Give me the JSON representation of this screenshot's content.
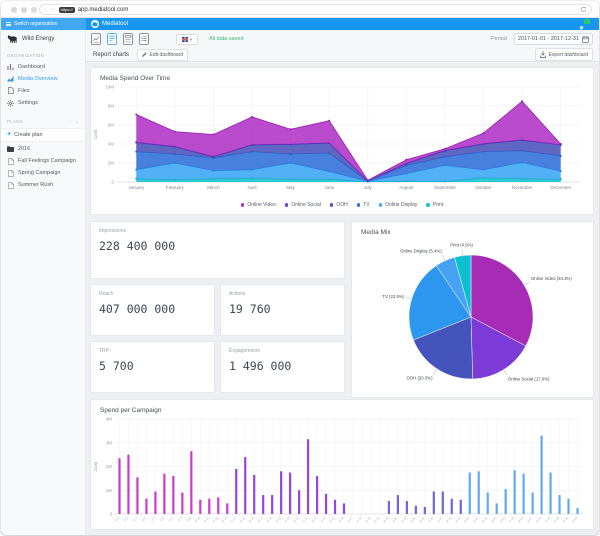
{
  "browser": {
    "protocol_label": "https://",
    "url": "app.mediatool.com"
  },
  "header": {
    "switch_org": "Switch organization",
    "brand": "Mediatool"
  },
  "sidebar": {
    "org_name": "Wild Energy",
    "section_org": "ORGANIZATION",
    "org_items": [
      {
        "label": "Dashboard",
        "icon": "dashboard-icon",
        "active": false
      },
      {
        "label": "Media Overview",
        "icon": "media-overview-icon",
        "active": true
      },
      {
        "label": "Files",
        "icon": "files-icon",
        "active": false
      },
      {
        "label": "Settings",
        "icon": "settings-icon",
        "active": false
      }
    ],
    "section_plans": "PLANS",
    "create_plan": "Create plan",
    "plans": [
      {
        "label": "2016",
        "icon": "folder-icon"
      },
      {
        "label": "Fall Feelings Campaign",
        "icon": "document-icon"
      },
      {
        "label": "Spring Campaign",
        "icon": "document-icon"
      },
      {
        "label": "Summer Rush",
        "icon": "document-icon"
      }
    ]
  },
  "toolbar": {
    "saved": "All data saved",
    "period_label": "Period",
    "period_value": "2017-01-01 - 2017-12-31",
    "tab": "Report charts",
    "edit": "Edit dashboard",
    "export": "Export dashboard"
  },
  "kpis": [
    {
      "label": "Impressions",
      "value": "228 400 000"
    },
    {
      "label": "Reach",
      "value": "407 000 000"
    },
    {
      "label": "Actions",
      "value": "19 760"
    },
    {
      "label": "TRP",
      "value": "5 700"
    },
    {
      "label": "Engagements",
      "value": "1 496 000"
    }
  ],
  "chart_data": [
    {
      "type": "area",
      "title": "Media Spend Over Time",
      "ylabel": "Cost",
      "ylim": [
        0,
        10000000
      ],
      "yticks": [
        "0",
        "2M",
        "4M",
        "6M",
        "8M",
        "10M"
      ],
      "categories": [
        "January",
        "February",
        "March",
        "April",
        "May",
        "June",
        "July",
        "August",
        "September",
        "October",
        "November",
        "December"
      ],
      "stacked": true,
      "series": [
        {
          "name": "Print",
          "color": "#19C2CE",
          "line": "#00A9B4",
          "values": [
            0.35,
            0.25,
            0.35,
            0.4,
            0.3,
            0.3,
            0.03,
            0.1,
            0.05,
            0.45,
            0.35,
            0.3
          ]
        },
        {
          "name": "Online Display",
          "color": "#3FA9F5",
          "line": "#1E88E5",
          "values": [
            0.95,
            1.75,
            0.85,
            0.9,
            1.7,
            0.8,
            0.04,
            0.8,
            1.7,
            0.85,
            1.7,
            0.85
          ]
        },
        {
          "name": "TV",
          "color": "#3472DB",
          "line": "#1B5FC4",
          "values": [
            1.9,
            0.95,
            1.35,
            1.9,
            0.95,
            1.95,
            0.04,
            0.85,
            0.9,
            1.9,
            1.25,
            1.6
          ]
        },
        {
          "name": "OOH",
          "color": "#4F55BE",
          "line": "#3A3F9E",
          "values": [
            0.95,
            0.75,
            0.1,
            0.7,
            1.0,
            1.05,
            0.02,
            0.2,
            0.65,
            0.8,
            1.1,
            1.15
          ]
        },
        {
          "name": "Online Social",
          "color": "#7C3BD6",
          "line": "#6526BE",
          "values": [
            0.05,
            0.05,
            0.05,
            0.05,
            0.05,
            0.05,
            0.01,
            0.05,
            0.05,
            0.05,
            0.05,
            0.03
          ]
        },
        {
          "name": "Online Video",
          "color": "#B237C8",
          "line": "#9A1FB0",
          "values": [
            2.9,
            1.55,
            2.3,
            2.9,
            1.55,
            2.3,
            0.04,
            0.35,
            0.15,
            1.1,
            4.05,
            0.07
          ]
        }
      ],
      "legend": [
        "Online Video",
        "Online Social",
        "OOH",
        "TV",
        "Online Display",
        "Print"
      ],
      "value_unit": "M"
    },
    {
      "type": "pie",
      "title": "Media Mix",
      "slices": [
        {
          "label": "Online Video",
          "pct": 34.3,
          "color": "#A62BB5"
        },
        {
          "label": "Online Social",
          "pct": 17.6,
          "color": "#7C3BD6"
        },
        {
          "label": "OOH",
          "pct": 20.3,
          "color": "#4553BC"
        },
        {
          "label": "TV",
          "pct": 22.6,
          "color": "#2D96EE"
        },
        {
          "label": "Online Display",
          "pct": 5.4,
          "color": "#46A2F2"
        },
        {
          "label": "Print",
          "pct": 4.5,
          "color": "#0BC1CE"
        }
      ]
    },
    {
      "type": "bar",
      "title": "Spend per Campaign",
      "ylabel": "Cost",
      "ylim": [
        0,
        4000000
      ],
      "yticks": [
        "0",
        "1M",
        "2M",
        "3M",
        "4M"
      ],
      "groups": [
        {
          "name": "2016",
          "color": "#CA3BCE",
          "start": 1,
          "values": [
            2.35,
            2.5,
            1.55,
            0.65,
            0.95,
            1.7,
            1.6,
            0.9,
            2.65,
            0.6,
            0.65,
            0.7,
            0.45
          ]
        },
        {
          "name": "Fall Feelings Campaign",
          "color": "#9545E4",
          "start": 14,
          "values": [
            1.9,
            2.4,
            1.65,
            0.8,
            0.8,
            1.8,
            1.75,
            1.0,
            3.15,
            1.6,
            0.85,
            0.6,
            0.45
          ]
        },
        {
          "name": "Spring Campaign",
          "color": "#6E66DD",
          "start": 31,
          "values": [
            0.55,
            0.8,
            0.55,
            0.35,
            0.3,
            0.95,
            0.95,
            0.65,
            0.6
          ]
        },
        {
          "name": "Summer Rush",
          "color": "#5FA9F1",
          "start": 40,
          "values": [
            1.75,
            1.8,
            0.9,
            0.45,
            1.05,
            1.85,
            1.7,
            0.9,
            3.3,
            1.75,
            0.8,
            0.65,
            0.25
          ]
        }
      ],
      "slots": 52,
      "xlabel_prefix": "w",
      "value_unit": "M"
    }
  ]
}
